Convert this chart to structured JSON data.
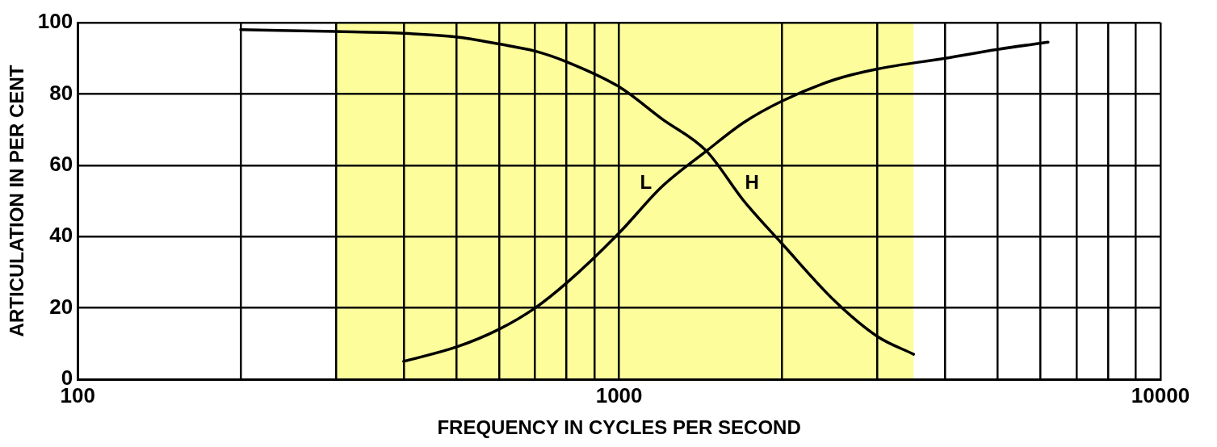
{
  "chart_data": {
    "type": "line",
    "xlabel": "FREQUENCY IN CYCLES PER SECOND",
    "ylabel": "ARTICULATION IN PER CENT",
    "log": "x",
    "xlim": [
      100,
      10000
    ],
    "xticks": [
      100,
      {
        "value": 200,
        "label": null
      },
      {
        "value": 300,
        "label": null
      },
      {
        "value": 400,
        "label": null
      },
      {
        "value": 500,
        "label": null
      },
      {
        "value": 600,
        "label": null
      },
      {
        "value": 700,
        "label": null
      },
      {
        "value": 800,
        "label": null
      },
      {
        "value": 900,
        "label": null
      },
      1000,
      {
        "value": 2000,
        "label": null
      },
      {
        "value": 3000,
        "label": null
      },
      {
        "value": 4000,
        "label": null
      },
      {
        "value": 5000,
        "label": null
      },
      {
        "value": 6000,
        "label": null
      },
      {
        "value": 7000,
        "label": null
      },
      {
        "value": 8000,
        "label": null
      },
      {
        "value": 9000,
        "label": null
      },
      10000
    ],
    "ylim": [
      0,
      100
    ],
    "yticks": [
      0,
      20,
      40,
      60,
      80,
      100
    ],
    "grid": true,
    "marker": "none",
    "line_style": "solid",
    "bands": [
      {
        "axis": "x",
        "from": 300,
        "to": 3500,
        "color": "#fdfd9c"
      }
    ],
    "series": [
      {
        "name": "L",
        "color": "#000000",
        "x": [
          400,
          500,
          600,
          700,
          800,
          1000,
          1200,
          1450,
          1700,
          2000,
          2500,
          3000,
          4000,
          5000,
          6200
        ],
        "values": [
          5,
          9,
          14,
          20,
          27,
          41,
          54,
          64,
          72,
          78,
          84,
          87,
          90,
          92.5,
          94.5
        ]
      },
      {
        "name": "H",
        "color": "#000000",
        "x": [
          200,
          300,
          400,
          500,
          600,
          700,
          800,
          1000,
          1200,
          1450,
          1700,
          2000,
          2500,
          3000,
          3500
        ],
        "values": [
          98,
          97.5,
          97,
          96,
          94,
          92,
          89,
          82,
          73,
          64,
          50,
          38,
          22,
          12,
          7
        ]
      }
    ]
  }
}
